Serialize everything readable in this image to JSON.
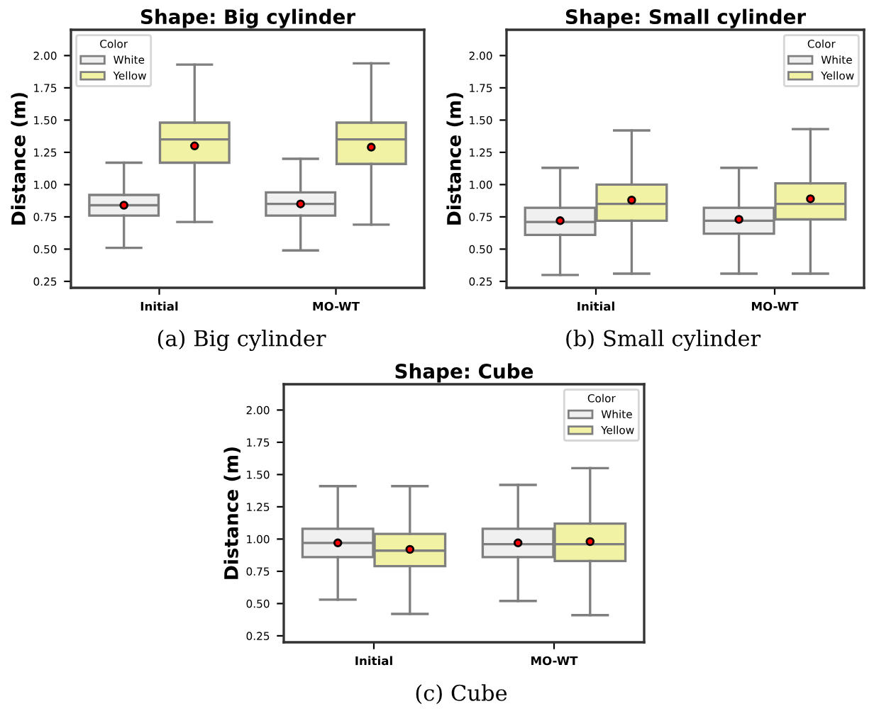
{
  "chart_data": [
    {
      "type": "box",
      "title": "Shape: Big cylinder",
      "ylabel": "Distance (m)",
      "categories": [
        "Initial",
        "MO-WT"
      ],
      "ylim": [
        0.2,
        2.2
      ],
      "yticks": [
        {
          "value": 0.25,
          "label": "0.25"
        },
        {
          "value": 0.5,
          "label": "0.50"
        },
        {
          "value": 0.75,
          "label": "0.75"
        },
        {
          "value": 1.0,
          "label": "1.00"
        },
        {
          "value": 1.25,
          "label": "1.25"
        },
        {
          "value": 1.5,
          "label": "1.50"
        },
        {
          "value": 1.75,
          "label": "1.75"
        },
        {
          "value": 2.0,
          "label": "2.00"
        }
      ],
      "legend": "top left",
      "legend_title": "Color",
      "grid": false,
      "annotations": [
        "(a) Big cylinder"
      ],
      "series": [
        {
          "name": "White",
          "color": "#f0f0f0",
          "boxes": [
            {
              "low": 0.51,
              "q1": 0.76,
              "median": 0.84,
              "q3": 0.92,
              "high": 1.17,
              "mean": 0.84
            },
            {
              "low": 0.49,
              "q1": 0.76,
              "median": 0.85,
              "q3": 0.94,
              "high": 1.2,
              "mean": 0.85
            }
          ]
        },
        {
          "name": "Yellow",
          "color": "#f2f2a4",
          "boxes": [
            {
              "low": 0.71,
              "q1": 1.17,
              "median": 1.35,
              "q3": 1.48,
              "high": 1.93,
              "mean": 1.3
            },
            {
              "low": 0.69,
              "q1": 1.16,
              "median": 1.35,
              "q3": 1.48,
              "high": 1.94,
              "mean": 1.29
            }
          ]
        }
      ]
    },
    {
      "type": "box",
      "title": "Shape: Small cylinder",
      "ylabel": "Distance (m)",
      "categories": [
        "Initial",
        "MO-WT"
      ],
      "ylim": [
        0.2,
        2.2
      ],
      "yticks": [
        {
          "value": 0.25,
          "label": "0.25"
        },
        {
          "value": 0.5,
          "label": "0.50"
        },
        {
          "value": 0.75,
          "label": "0.75"
        },
        {
          "value": 1.0,
          "label": "1.00"
        },
        {
          "value": 1.25,
          "label": "1.25"
        },
        {
          "value": 1.5,
          "label": "1.50"
        },
        {
          "value": 1.75,
          "label": "1.75"
        },
        {
          "value": 2.0,
          "label": "2.00"
        }
      ],
      "legend": "top right",
      "legend_title": "Color",
      "grid": false,
      "annotations": [
        "(b) Small cylinder"
      ],
      "series": [
        {
          "name": "White",
          "color": "#f0f0f0",
          "boxes": [
            {
              "low": 0.3,
              "q1": 0.61,
              "median": 0.71,
              "q3": 0.82,
              "high": 1.13,
              "mean": 0.72
            },
            {
              "low": 0.31,
              "q1": 0.62,
              "median": 0.72,
              "q3": 0.82,
              "high": 1.13,
              "mean": 0.73
            }
          ]
        },
        {
          "name": "Yellow",
          "color": "#f2f2a4",
          "boxes": [
            {
              "low": 0.31,
              "q1": 0.72,
              "median": 0.85,
              "q3": 1.0,
              "high": 1.42,
              "mean": 0.88
            },
            {
              "low": 0.31,
              "q1": 0.73,
              "median": 0.85,
              "q3": 1.01,
              "high": 1.43,
              "mean": 0.89
            }
          ]
        }
      ]
    },
    {
      "type": "box",
      "title": "Shape: Cube",
      "ylabel": "Distance (m)",
      "categories": [
        "Initial",
        "MO-WT"
      ],
      "ylim": [
        0.2,
        2.2
      ],
      "yticks": [
        {
          "value": 0.25,
          "label": "0.25"
        },
        {
          "value": 0.5,
          "label": "0.50"
        },
        {
          "value": 0.75,
          "label": "0.75"
        },
        {
          "value": 1.0,
          "label": "1.00"
        },
        {
          "value": 1.25,
          "label": "1.25"
        },
        {
          "value": 1.5,
          "label": "1.50"
        },
        {
          "value": 1.75,
          "label": "1.75"
        },
        {
          "value": 2.0,
          "label": "2.00"
        }
      ],
      "legend": "top right",
      "legend_title": "Color",
      "grid": false,
      "annotations": [
        "(c) Cube"
      ],
      "series": [
        {
          "name": "White",
          "color": "#f0f0f0",
          "boxes": [
            {
              "low": 0.53,
              "q1": 0.86,
              "median": 0.97,
              "q3": 1.08,
              "high": 1.41,
              "mean": 0.97
            },
            {
              "low": 0.52,
              "q1": 0.86,
              "median": 0.96,
              "q3": 1.08,
              "high": 1.42,
              "mean": 0.97
            }
          ]
        },
        {
          "name": "Yellow",
          "color": "#f2f2a4",
          "boxes": [
            {
              "low": 0.42,
              "q1": 0.79,
              "median": 0.91,
              "q3": 1.04,
              "high": 1.41,
              "mean": 0.92
            },
            {
              "low": 0.41,
              "q1": 0.83,
              "median": 0.96,
              "q3": 1.12,
              "high": 1.55,
              "mean": 0.98
            }
          ]
        }
      ]
    }
  ]
}
